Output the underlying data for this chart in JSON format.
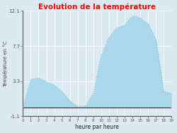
{
  "title": "Evolution de la température",
  "title_color": "#ff0000",
  "xlabel": "heure par heure",
  "ylabel": "Température en °C",
  "background_color": "#dce9f0",
  "plot_bg_color": "#dce9f0",
  "ylim": [
    -1.1,
    12.1
  ],
  "yticks": [
    -1.1,
    3.3,
    7.7,
    12.1
  ],
  "xlim": [
    0,
    19
  ],
  "xticks": [
    0,
    1,
    2,
    3,
    4,
    5,
    6,
    7,
    8,
    9,
    10,
    11,
    12,
    13,
    14,
    15,
    16,
    17,
    18,
    19
  ],
  "hours": [
    0,
    1,
    2,
    3,
    4,
    5,
    6,
    7,
    8,
    9,
    10,
    11,
    12,
    13,
    14,
    15,
    16,
    17,
    18,
    19
  ],
  "temps": [
    0.0,
    3.5,
    3.7,
    3.2,
    2.8,
    2.0,
    0.8,
    0.1,
    0.2,
    1.8,
    6.5,
    8.8,
    10.0,
    10.3,
    11.5,
    11.2,
    10.5,
    8.5,
    2.0,
    1.8
  ],
  "fill_color": "#aad7ea",
  "line_color": "#66bbdd",
  "fill_baseline": 0,
  "fill_alpha": 1.0
}
